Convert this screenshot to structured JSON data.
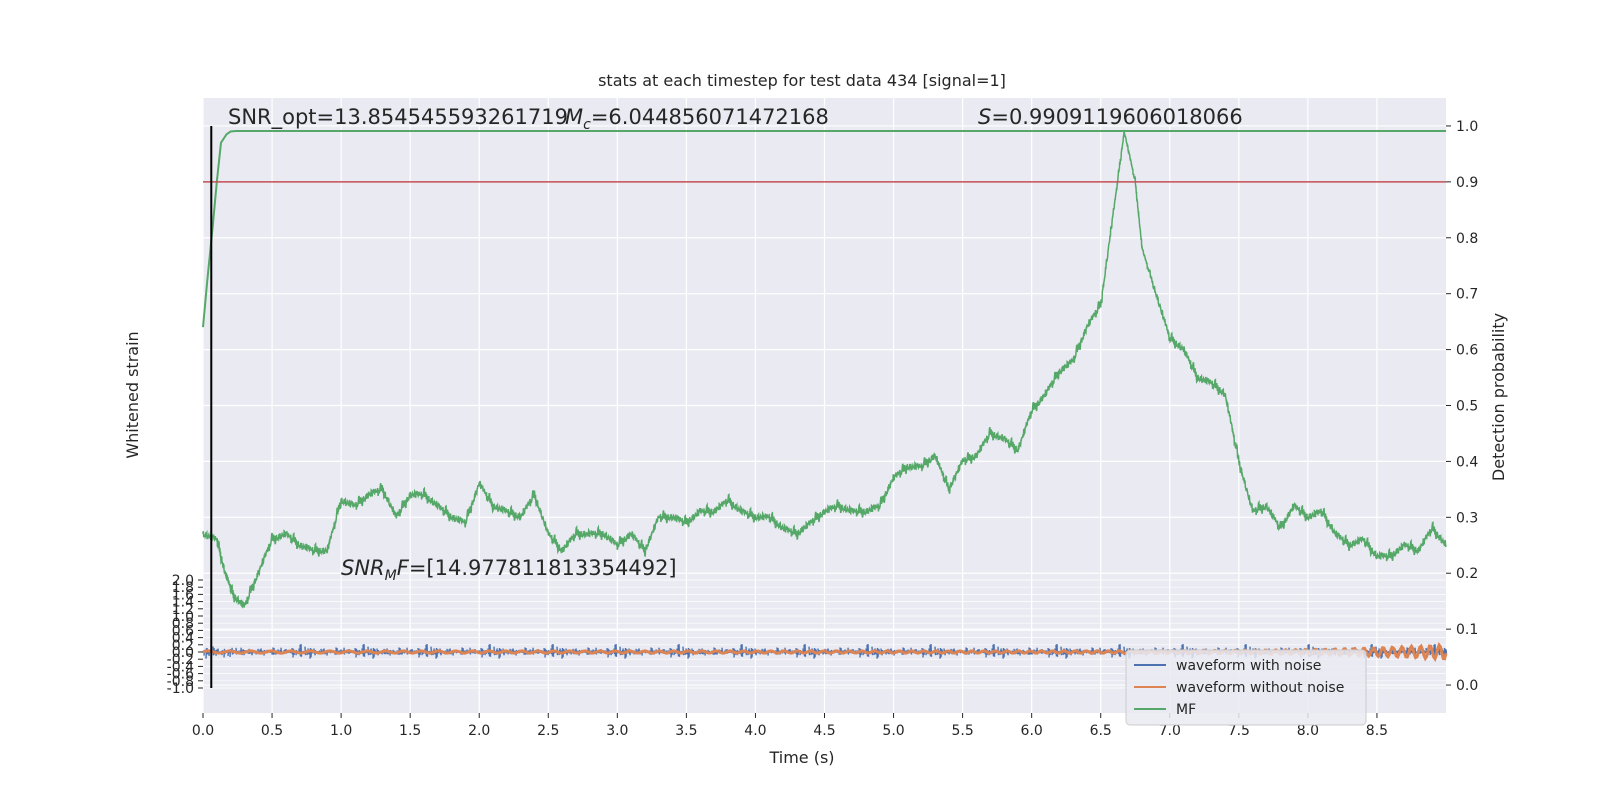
{
  "chart_data": {
    "type": "line",
    "title": "stats at each timestep for test data 434 [signal=1]",
    "xlabel": "Time (s)",
    "ylabel_left": "Whitened strain",
    "ylabel_right": "Detection probability",
    "xlim": [
      0.0,
      9.0
    ],
    "ylim_right": [
      -0.05,
      1.05
    ],
    "ylim_left": [
      -1.0,
      2.0
    ],
    "x_ticks": [
      "0.0",
      "0.5",
      "1.0",
      "1.5",
      "2.0",
      "2.5",
      "3.0",
      "3.5",
      "4.0",
      "4.5",
      "5.0",
      "5.5",
      "6.0",
      "6.5",
      "7.0",
      "7.5",
      "8.0",
      "8.5"
    ],
    "y_right_ticks": [
      "0.0",
      "0.1",
      "0.2",
      "0.3",
      "0.4",
      "0.5",
      "0.6",
      "0.7",
      "0.8",
      "0.9",
      "1.0"
    ],
    "y_left_ticks": [
      "-1.0",
      "-0.8",
      "-0.6",
      "-0.4",
      "-0.2",
      "0.0",
      "0.2",
      "0.4",
      "0.6",
      "0.8",
      "1.0",
      "1.2",
      "1.4",
      "1.6",
      "1.8",
      "2.0"
    ],
    "threshold": 0.9,
    "marker_time": 0.06,
    "annotations": {
      "snr_opt": "SNR_opt=13.854545593261719",
      "mc": "=6.044856071472168",
      "s": "=0.9909119606018066",
      "snr_mf": "=[14.977811813354492]"
    },
    "series": [
      {
        "name": "waveform with noise",
        "color": "#4c72b0",
        "amplitude": 0.2,
        "x": [],
        "y": []
      },
      {
        "name": "waveform without noise",
        "color": "#dd8452",
        "amplitude": 0.03,
        "x": [],
        "y": []
      },
      {
        "name": "MF",
        "color": "#55a868",
        "x": [
          0.0,
          0.1,
          0.16,
          0.22,
          0.3,
          0.4,
          0.5,
          0.6,
          0.7,
          0.8,
          0.9,
          1.0,
          1.1,
          1.2,
          1.3,
          1.4,
          1.5,
          1.6,
          1.7,
          1.8,
          1.9,
          2.0,
          2.1,
          2.2,
          2.3,
          2.4,
          2.5,
          2.6,
          2.7,
          2.8,
          2.9,
          3.0,
          3.1,
          3.2,
          3.3,
          3.4,
          3.5,
          3.6,
          3.7,
          3.8,
          3.9,
          4.0,
          4.1,
          4.2,
          4.3,
          4.4,
          4.5,
          4.6,
          4.7,
          4.8,
          4.9,
          5.0,
          5.1,
          5.2,
          5.3,
          5.4,
          5.5,
          5.6,
          5.7,
          5.8,
          5.9,
          6.0,
          6.1,
          6.2,
          6.3,
          6.4,
          6.5,
          6.6,
          6.67,
          6.75,
          6.8,
          6.9,
          7.0,
          7.1,
          7.2,
          7.3,
          7.4,
          7.5,
          7.6,
          7.7,
          7.8,
          7.9,
          8.0,
          8.1,
          8.2,
          8.3,
          8.4,
          8.5,
          8.6,
          8.7,
          8.8,
          8.9,
          9.0
        ],
        "y": [
          0.27,
          0.26,
          0.2,
          0.16,
          0.14,
          0.2,
          0.26,
          0.27,
          0.25,
          0.24,
          0.24,
          0.33,
          0.32,
          0.34,
          0.35,
          0.3,
          0.34,
          0.34,
          0.32,
          0.3,
          0.29,
          0.36,
          0.32,
          0.31,
          0.3,
          0.34,
          0.27,
          0.24,
          0.27,
          0.27,
          0.27,
          0.25,
          0.27,
          0.24,
          0.3,
          0.3,
          0.29,
          0.31,
          0.31,
          0.33,
          0.31,
          0.3,
          0.3,
          0.28,
          0.27,
          0.29,
          0.31,
          0.32,
          0.31,
          0.31,
          0.32,
          0.37,
          0.39,
          0.39,
          0.41,
          0.35,
          0.4,
          0.41,
          0.45,
          0.44,
          0.42,
          0.49,
          0.52,
          0.56,
          0.58,
          0.64,
          0.68,
          0.86,
          0.99,
          0.9,
          0.78,
          0.7,
          0.62,
          0.6,
          0.55,
          0.54,
          0.52,
          0.4,
          0.31,
          0.32,
          0.28,
          0.32,
          0.3,
          0.31,
          0.27,
          0.25,
          0.26,
          0.23,
          0.23,
          0.25,
          0.24,
          0.28,
          0.25
        ]
      }
    ],
    "mf_rise": {
      "x": [
        0.0,
        0.03,
        0.07,
        0.1,
        0.13,
        0.17,
        0.2,
        0.24,
        0.3,
        0.4,
        1.0,
        9.0
      ],
      "y": [
        0.64,
        0.72,
        0.82,
        0.9,
        0.97,
        0.985,
        0.99,
        0.991,
        0.991,
        0.991,
        0.991,
        0.991
      ]
    },
    "legend": {
      "loc": "lower right"
    },
    "grid": true
  }
}
